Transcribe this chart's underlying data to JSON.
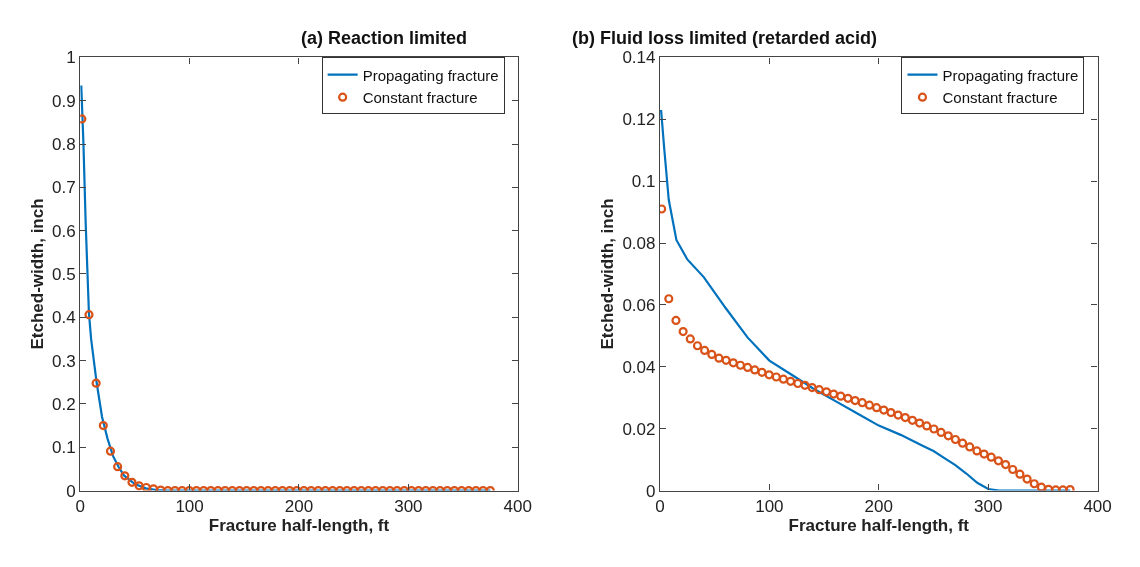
{
  "chart_data": [
    {
      "type": "line",
      "title": "(a) Reaction limited",
      "xlabel": "Fracture half-length, ft",
      "ylabel": "Etched-width, inch",
      "xlim": [
        0,
        400
      ],
      "xticks": [
        0,
        100,
        200,
        300,
        400
      ],
      "ylim": [
        0,
        1
      ],
      "yticks": [
        0,
        0.1,
        0.2,
        0.3,
        0.4,
        0.5,
        0.6,
        0.7,
        0.8,
        0.9,
        1
      ],
      "legend": "top right",
      "series": [
        {
          "name": "Propagating fracture",
          "color": "#0072bd",
          "line_style": "solid",
          "x": [
            1,
            3,
            5,
            8,
            10,
            15,
            20,
            25,
            30,
            35,
            40,
            50,
            60,
            70,
            80,
            375
          ],
          "values": [
            0.935,
            0.8,
            0.62,
            0.41,
            0.35,
            0.25,
            0.17,
            0.12,
            0.08,
            0.055,
            0.035,
            0.015,
            0.005,
            0.001,
            0,
            0
          ]
        },
        {
          "name": "Constant fracture",
          "color": "#d95319",
          "type": "scatter",
          "marker": "circle",
          "x": [
            1.5,
            8.05,
            14.6,
            21.15,
            27.7,
            34.25,
            40.8,
            47.35,
            53.9,
            60.45,
            67,
            73.55,
            80.1,
            86.65,
            93.2,
            99.75,
            106.3,
            112.85,
            119.4,
            125.95,
            132.5,
            139.05,
            145.6,
            152.15,
            158.7,
            165.25,
            171.8,
            178.35,
            184.9,
            191.45,
            198,
            204.55,
            211.1,
            217.65,
            224.2,
            230.75,
            237.3,
            243.85,
            250.4,
            256.95,
            263.5,
            270.05,
            276.6,
            283.15,
            289.7,
            296.25,
            302.8,
            309.35,
            315.9,
            322.45,
            329,
            335.55,
            342.1,
            348.65,
            355.2,
            361.75,
            368.3,
            374.85
          ],
          "values": [
            0.858,
            0.406,
            0.248,
            0.15,
            0.091,
            0.055,
            0.034,
            0.019,
            0.011,
            0.007,
            0.004,
            0.001,
            0,
            0,
            0,
            0,
            0,
            0,
            0,
            0,
            0,
            0,
            0,
            0,
            0,
            0,
            0,
            0,
            0,
            0,
            0,
            0,
            0,
            0,
            0,
            0,
            0,
            0,
            0,
            0,
            0,
            0,
            0,
            0,
            0,
            0,
            0,
            0,
            0,
            0,
            0,
            0,
            0,
            0,
            0,
            0,
            0,
            0
          ]
        }
      ]
    },
    {
      "type": "line",
      "title": "(b) Fluid loss limited (retarded acid)",
      "xlabel": "Fracture half-length, ft",
      "ylabel": "Etched-width, inch",
      "xlim": [
        0,
        400
      ],
      "xticks": [
        0,
        100,
        200,
        300,
        400
      ],
      "ylim": [
        0,
        0.14
      ],
      "yticks": [
        0,
        0.02,
        0.04,
        0.06,
        0.08,
        0.1,
        0.12,
        0.14
      ],
      "legend": "top right",
      "series": [
        {
          "name": "Propagating fracture",
          "color": "#0072bd",
          "line_style": "solid",
          "x": [
            1,
            4,
            8,
            15,
            25,
            40,
            60,
            80,
            100,
            120,
            140,
            160,
            180,
            200,
            220,
            240,
            250,
            260,
            270,
            280,
            290,
            300,
            310,
            375
          ],
          "values": [
            0.123,
            0.11,
            0.094,
            0.081,
            0.0747,
            0.069,
            0.059,
            0.0495,
            0.042,
            0.0375,
            0.033,
            0.029,
            0.025,
            0.021,
            0.018,
            0.0145,
            0.0128,
            0.0105,
            0.0082,
            0.0055,
            0.0025,
            0.0005,
            0,
            0
          ]
        },
        {
          "name": "Constant fracture",
          "color": "#d95319",
          "type": "scatter",
          "marker": "circle",
          "x": [
            1.5,
            8.05,
            14.6,
            21.15,
            27.7,
            34.25,
            40.8,
            47.35,
            53.9,
            60.45,
            67,
            73.55,
            80.1,
            86.65,
            93.2,
            99.75,
            106.3,
            112.85,
            119.4,
            125.95,
            132.5,
            139.05,
            145.6,
            152.15,
            158.7,
            165.25,
            171.8,
            178.35,
            184.9,
            191.45,
            198,
            204.55,
            211.1,
            217.65,
            224.2,
            230.75,
            237.3,
            243.85,
            250.4,
            256.95,
            263.5,
            270.05,
            276.6,
            283.15,
            289.7,
            296.25,
            302.8,
            309.35,
            315.9,
            322.45,
            329,
            335.55,
            342.1,
            348.65,
            355.2,
            361.75,
            368.3,
            374.85
          ],
          "values": [
            0.091,
            0.062,
            0.055,
            0.0514,
            0.049,
            0.0468,
            0.0453,
            0.044,
            0.0428,
            0.0421,
            0.0413,
            0.0405,
            0.0398,
            0.039,
            0.0382,
            0.0374,
            0.0367,
            0.036,
            0.0353,
            0.0346,
            0.034,
            0.0333,
            0.0326,
            0.0319,
            0.0312,
            0.0305,
            0.0298,
            0.0291,
            0.0284,
            0.0276,
            0.0268,
            0.026,
            0.0252,
            0.0244,
            0.0236,
            0.0227,
            0.0218,
            0.0209,
            0.0199,
            0.0188,
            0.0177,
            0.0165,
            0.0153,
            0.0141,
            0.0128,
            0.0118,
            0.0108,
            0.0096,
            0.0084,
            0.0068,
            0.0053,
            0.0037,
            0.0022,
            0.0011,
            0.0004,
            0.0002,
            0.0002,
            0.0003
          ]
        }
      ]
    }
  ]
}
